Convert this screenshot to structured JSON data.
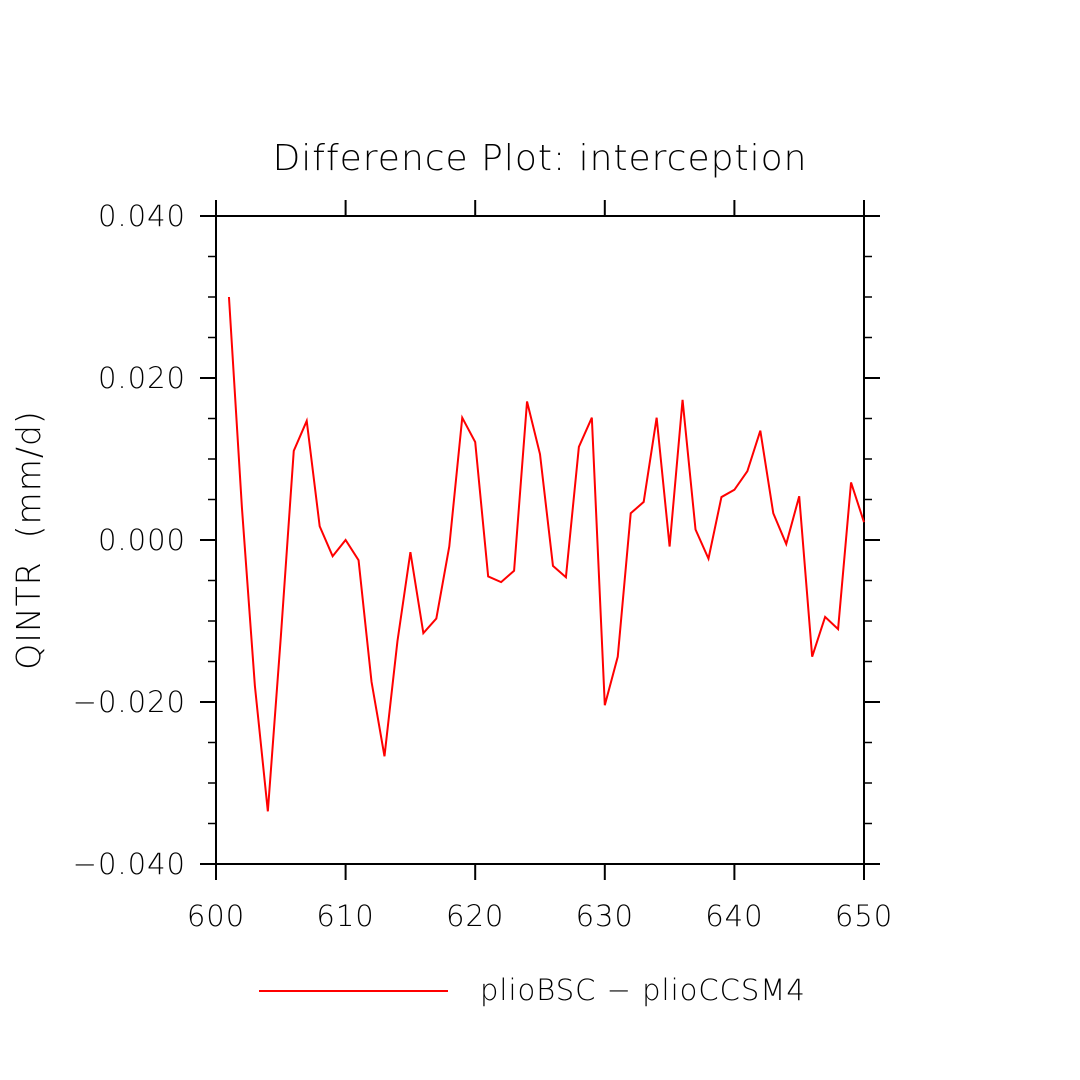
{
  "chart_data": {
    "type": "line",
    "title": "Difference Plot: interception",
    "xlabel": "",
    "ylabel": "QINTR  (mm/d)",
    "xlim": [
      600,
      650
    ],
    "ylim": [
      -0.04,
      0.04
    ],
    "x_ticks": [
      "600",
      "610",
      "620",
      "630",
      "640",
      "650"
    ],
    "x_tick_values": [
      600,
      610,
      620,
      630,
      640,
      650
    ],
    "y_ticks": [
      "0.040",
      "0.020",
      "0.000",
      "−0.020",
      "−0.040"
    ],
    "y_tick_values": [
      0.04,
      0.02,
      0.0,
      -0.02,
      -0.04
    ],
    "grid": false,
    "legend_position": "bottom-center",
    "series": [
      {
        "name": "plioBSC − plioCCSM4",
        "color": "#ff0000",
        "x": [
          601,
          602,
          603,
          604,
          605,
          606,
          607,
          608,
          609,
          610,
          611,
          612,
          613,
          614,
          615,
          616,
          617,
          618,
          619,
          620,
          621,
          622,
          623,
          624,
          625,
          626,
          627,
          628,
          629,
          630,
          631,
          632,
          633,
          634,
          635,
          636,
          637,
          638,
          639,
          640,
          641,
          642,
          643,
          644,
          645,
          646,
          647,
          648,
          649,
          650
        ],
        "y": [
          0.03,
          0.004,
          -0.018,
          -0.0335,
          -0.012,
          0.011,
          0.0147,
          0.0017,
          -0.002,
          0.0,
          -0.0025,
          -0.0175,
          -0.0267,
          -0.0125,
          -0.0015,
          -0.0115,
          -0.0097,
          -0.0008,
          0.0151,
          0.0121,
          -0.0045,
          -0.0052,
          -0.0038,
          0.0171,
          0.0106,
          -0.0032,
          -0.0046,
          0.0115,
          0.0151,
          -0.0204,
          -0.0144,
          0.0033,
          0.0047,
          0.0151,
          -0.0008,
          0.0173,
          0.0013,
          -0.0023,
          0.0053,
          0.0062,
          0.0085,
          0.0135,
          0.0033,
          -0.0005,
          0.0054,
          -0.0144,
          -0.0095,
          -0.011,
          0.0071,
          0.0022
        ]
      }
    ]
  }
}
